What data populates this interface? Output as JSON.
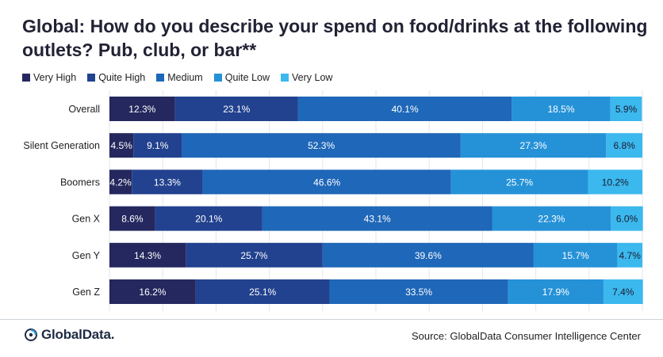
{
  "chart_data": {
    "type": "bar",
    "orientation": "horizontal-stacked-100",
    "title": "Global: How do you describe your spend on food/drinks at the following outlets? Pub, club, or bar**",
    "categories": [
      "Overall",
      "Silent Generation",
      "Boomers",
      "Gen X",
      "Gen Y",
      "Gen Z"
    ],
    "series": [
      {
        "name": "Very High",
        "color": "#24285e",
        "values": [
          12.3,
          4.5,
          4.2,
          8.6,
          14.3,
          16.2
        ],
        "labels": [
          "12.3%",
          "4.5%",
          "4.2%",
          "8.6%",
          "14.3%",
          "16.2%"
        ]
      },
      {
        "name": "Quite High",
        "color": "#22428f",
        "values": [
          23.1,
          9.1,
          13.3,
          20.1,
          25.7,
          25.1
        ],
        "labels": [
          "23.1%",
          "9.1%",
          "13.3%",
          "20.1%",
          "25.7%",
          "25.1%"
        ]
      },
      {
        "name": "Medium",
        "color": "#1f67b8",
        "values": [
          40.1,
          52.3,
          46.6,
          43.1,
          39.6,
          33.5
        ],
        "labels": [
          "40.1%",
          "52.3%",
          "46.6%",
          "43.1%",
          "39.6%",
          "33.5%"
        ]
      },
      {
        "name": "Quite Low",
        "color": "#2592d8",
        "values": [
          18.5,
          27.3,
          25.7,
          22.3,
          15.7,
          17.9
        ],
        "labels": [
          "18.5%",
          "27.3%",
          "25.7%",
          "22.3%",
          "15.7%",
          "17.9%"
        ]
      },
      {
        "name": "Very Low",
        "color": "#3bb8ee",
        "values": [
          5.9,
          6.8,
          10.2,
          6.0,
          4.7,
          7.4
        ],
        "labels": [
          "5.9%",
          "6.8%",
          "10.2%",
          "6.0%",
          "4.7%",
          "7.4%"
        ]
      }
    ],
    "xlim": [
      0,
      100
    ],
    "grid": true,
    "legend_position": "top-left"
  },
  "footer": {
    "brand": "GlobalData.",
    "source": "Source: GlobalData Consumer Intelligence Center"
  }
}
